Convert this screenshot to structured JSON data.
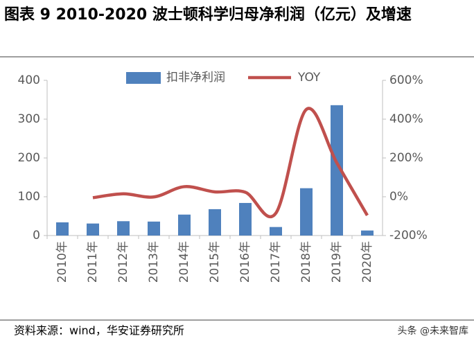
{
  "chart_data": {
    "type": "bar-line",
    "title": "图表 9 2010-2020 波士顿科学归母净利润（亿元）及增速",
    "source": "资料来源：wind，华安证券研究所",
    "watermark": "头条 @未来智库",
    "categories": [
      "2010年",
      "2011年",
      "2012年",
      "2013年",
      "2014年",
      "2015年",
      "2016年",
      "2017年",
      "2018年",
      "2019年",
      "2020年"
    ],
    "series": [
      {
        "name": "扣非净利润",
        "type": "bar",
        "color": "#4f81bd",
        "values": [
          34,
          31,
          37,
          36,
          54,
          68,
          84,
          22,
          122,
          336,
          13
        ]
      },
      {
        "name": "YOY",
        "type": "line",
        "axis": "y2",
        "color": "#c0504d",
        "values": [
          null,
          -5,
          15,
          -1,
          52,
          25,
          23,
          -85,
          450,
          175,
          -96
        ]
      }
    ],
    "ylim": [
      0,
      400
    ],
    "yticks": [
      0,
      100,
      200,
      300,
      400
    ],
    "y2lim": [
      -200,
      600
    ],
    "y2ticks": [
      {
        "value": -200,
        "label": "-200%"
      },
      {
        "value": 0,
        "label": "0%"
      },
      {
        "value": 200,
        "label": "200%"
      },
      {
        "value": 400,
        "label": "400%"
      },
      {
        "value": 600,
        "label": "600%"
      }
    ],
    "legend": "top"
  }
}
